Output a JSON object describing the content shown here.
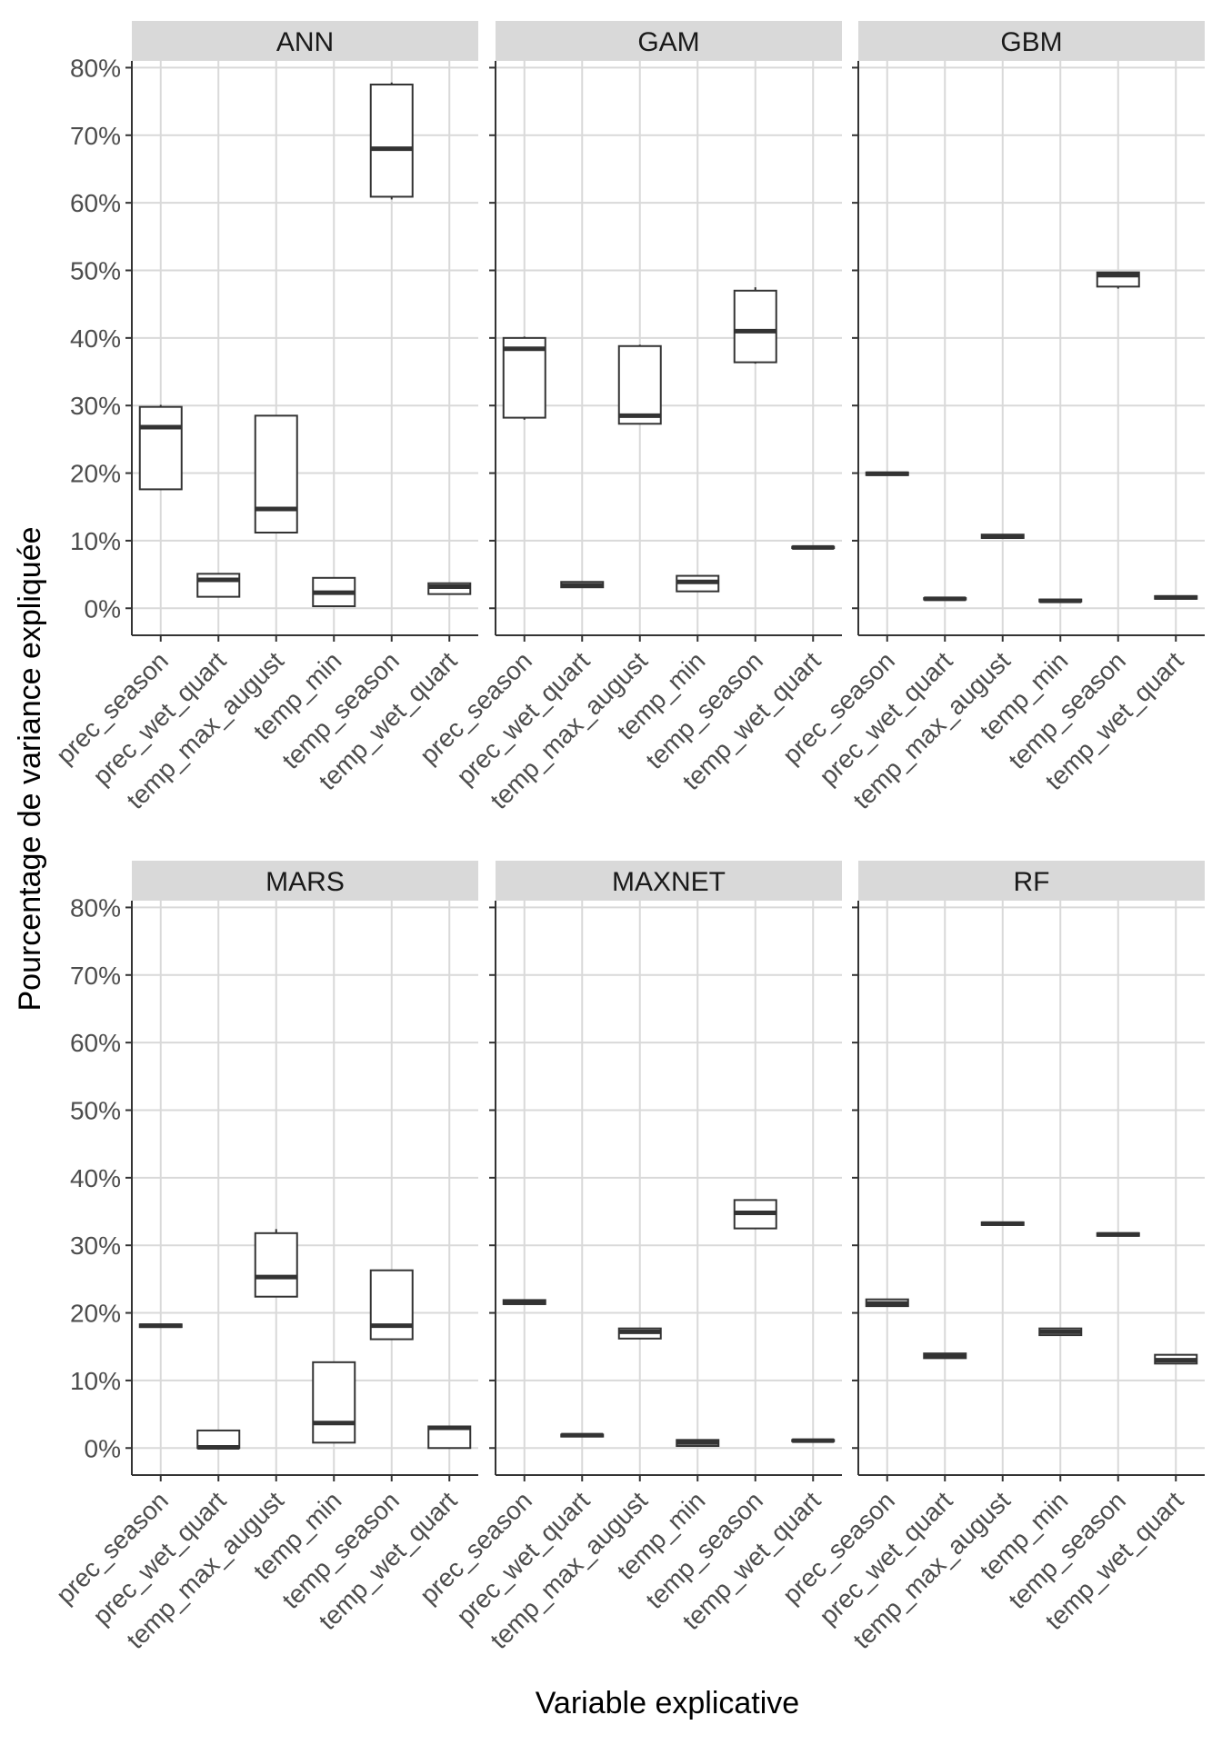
{
  "chart_data": {
    "type": "boxplot",
    "xlabel": "Variable explicative",
    "ylabel": "Pourcentage de variance expliquée",
    "ylim": [
      -0.04,
      0.81
    ],
    "yticks": [
      0,
      0.1,
      0.2,
      0.3,
      0.4,
      0.5,
      0.6,
      0.7,
      0.8
    ],
    "ytick_labels": [
      "0%",
      "10%",
      "20%",
      "30%",
      "40%",
      "50%",
      "60%",
      "70%",
      "80%"
    ],
    "categories": [
      "prec_season",
      "prec_wet_quart",
      "temp_max_august",
      "temp_min",
      "temp_season",
      "temp_wet_quart"
    ],
    "colors": {
      "strip": "#d9d9d9",
      "grid": "#d9d9d9",
      "box": "#333333"
    },
    "panels": [
      {
        "title": "ANN",
        "boxes": [
          {
            "min": 0.175,
            "q1": 0.176,
            "median": 0.268,
            "q3": 0.298,
            "max": 0.301
          },
          {
            "min": 0.017,
            "q1": 0.017,
            "median": 0.042,
            "q3": 0.051,
            "max": 0.051
          },
          {
            "min": 0.112,
            "q1": 0.112,
            "median": 0.147,
            "q3": 0.285,
            "max": 0.285
          },
          {
            "min": 0.003,
            "q1": 0.003,
            "median": 0.023,
            "q3": 0.045,
            "max": 0.045
          },
          {
            "min": 0.605,
            "q1": 0.609,
            "median": 0.68,
            "q3": 0.775,
            "max": 0.778
          },
          {
            "min": 0.021,
            "q1": 0.021,
            "median": 0.032,
            "q3": 0.037,
            "max": 0.037
          }
        ]
      },
      {
        "title": "GAM",
        "boxes": [
          {
            "min": 0.279,
            "q1": 0.282,
            "median": 0.384,
            "q3": 0.4,
            "max": 0.402
          },
          {
            "min": 0.031,
            "q1": 0.031,
            "median": 0.034,
            "q3": 0.039,
            "max": 0.039
          },
          {
            "min": 0.273,
            "q1": 0.273,
            "median": 0.285,
            "q3": 0.388,
            "max": 0.39
          },
          {
            "min": 0.025,
            "q1": 0.025,
            "median": 0.039,
            "q3": 0.048,
            "max": 0.048
          },
          {
            "min": 0.362,
            "q1": 0.364,
            "median": 0.41,
            "q3": 0.47,
            "max": 0.475
          },
          {
            "min": 0.089,
            "q1": 0.089,
            "median": 0.09,
            "q3": 0.091,
            "max": 0.091
          }
        ]
      },
      {
        "title": "GBM",
        "boxes": [
          {
            "min": 0.197,
            "q1": 0.197,
            "median": 0.199,
            "q3": 0.201,
            "max": 0.201
          },
          {
            "min": 0.013,
            "q1": 0.013,
            "median": 0.014,
            "q3": 0.015,
            "max": 0.015
          },
          {
            "min": 0.104,
            "q1": 0.104,
            "median": 0.106,
            "q3": 0.109,
            "max": 0.109
          },
          {
            "min": 0.01,
            "q1": 0.01,
            "median": 0.011,
            "q3": 0.013,
            "max": 0.013
          },
          {
            "min": 0.473,
            "q1": 0.476,
            "median": 0.493,
            "q3": 0.497,
            "max": 0.498
          },
          {
            "min": 0.014,
            "q1": 0.014,
            "median": 0.016,
            "q3": 0.018,
            "max": 0.018
          }
        ]
      },
      {
        "title": "MARS",
        "boxes": [
          {
            "min": 0.179,
            "q1": 0.179,
            "median": 0.181,
            "q3": 0.183,
            "max": 0.183
          },
          {
            "min": 0.0,
            "q1": 0.0,
            "median": 0.001,
            "q3": 0.026,
            "max": 0.026
          },
          {
            "min": 0.224,
            "q1": 0.224,
            "median": 0.253,
            "q3": 0.318,
            "max": 0.324
          },
          {
            "min": 0.008,
            "q1": 0.008,
            "median": 0.037,
            "q3": 0.127,
            "max": 0.127
          },
          {
            "min": 0.161,
            "q1": 0.161,
            "median": 0.181,
            "q3": 0.263,
            "max": 0.263
          },
          {
            "min": 0.0,
            "q1": 0.0,
            "median": 0.03,
            "q3": 0.032,
            "max": 0.032
          }
        ]
      },
      {
        "title": "MAXNET",
        "boxes": [
          {
            "min": 0.213,
            "q1": 0.213,
            "median": 0.215,
            "q3": 0.219,
            "max": 0.219
          },
          {
            "min": 0.017,
            "q1": 0.017,
            "median": 0.019,
            "q3": 0.02,
            "max": 0.02
          },
          {
            "min": 0.162,
            "q1": 0.162,
            "median": 0.172,
            "q3": 0.177,
            "max": 0.177
          },
          {
            "min": 0.003,
            "q1": 0.003,
            "median": 0.008,
            "q3": 0.012,
            "max": 0.012
          },
          {
            "min": 0.325,
            "q1": 0.325,
            "median": 0.348,
            "q3": 0.367,
            "max": 0.367
          },
          {
            "min": 0.01,
            "q1": 0.01,
            "median": 0.011,
            "q3": 0.012,
            "max": 0.012
          }
        ]
      },
      {
        "title": "RF",
        "boxes": [
          {
            "min": 0.21,
            "q1": 0.21,
            "median": 0.214,
            "q3": 0.22,
            "max": 0.22
          },
          {
            "min": 0.133,
            "q1": 0.133,
            "median": 0.137,
            "q3": 0.14,
            "max": 0.14
          },
          {
            "min": 0.33,
            "q1": 0.33,
            "median": 0.332,
            "q3": 0.334,
            "max": 0.334
          },
          {
            "min": 0.167,
            "q1": 0.167,
            "median": 0.172,
            "q3": 0.177,
            "max": 0.177
          },
          {
            "min": 0.314,
            "q1": 0.314,
            "median": 0.316,
            "q3": 0.318,
            "max": 0.318
          },
          {
            "min": 0.125,
            "q1": 0.125,
            "median": 0.13,
            "q3": 0.138,
            "max": 0.138
          }
        ]
      }
    ]
  }
}
